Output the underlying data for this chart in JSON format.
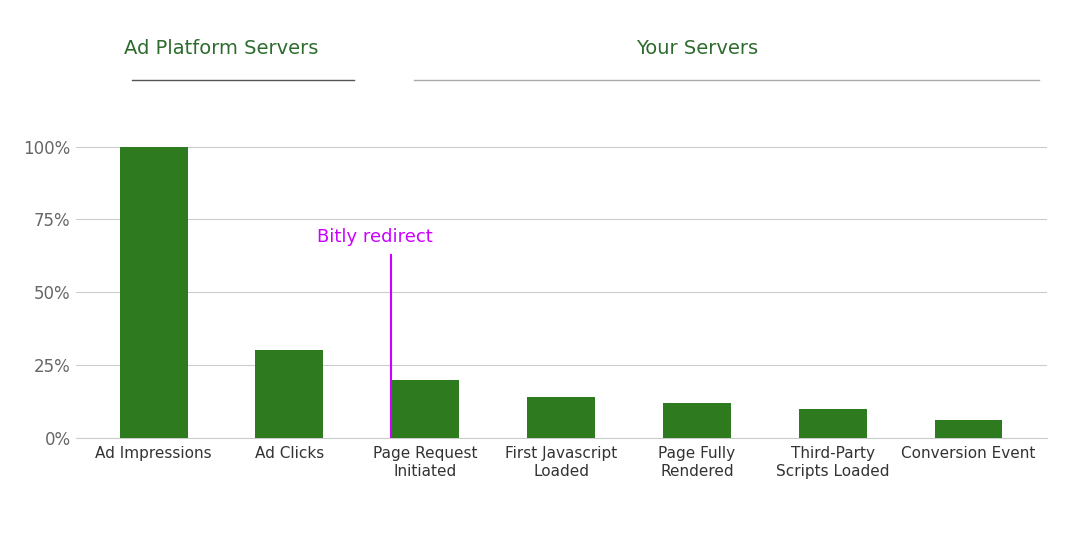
{
  "categories": [
    "Ad Impressions",
    "Ad Clicks",
    "Page Request\nInitiated",
    "First Javascript\nLoaded",
    "Page Fully\nRendered",
    "Third-Party\nScripts Loaded",
    "Conversion Event"
  ],
  "values": [
    100,
    30,
    20,
    14,
    12,
    10,
    6
  ],
  "bar_color": "#2e7a1e",
  "background_color": "#ffffff",
  "ylim": [
    0,
    110
  ],
  "yticks": [
    0,
    25,
    50,
    75,
    100
  ],
  "ytick_labels": [
    "0%",
    "25%",
    "50%",
    "75%",
    "100%"
  ],
  "header_ad_platform": "Ad Platform Servers",
  "header_your_servers": "Your Servers",
  "header_color": "#2e6b2e",
  "bitly_text": "Bitly redirect",
  "bitly_color": "#cc00ff",
  "grid_color": "#cccccc",
  "underline_ap_color": "#555555",
  "underline_ys_color": "#aaaaaa",
  "tick_label_color": "#666666",
  "xtick_label_color": "#333333"
}
